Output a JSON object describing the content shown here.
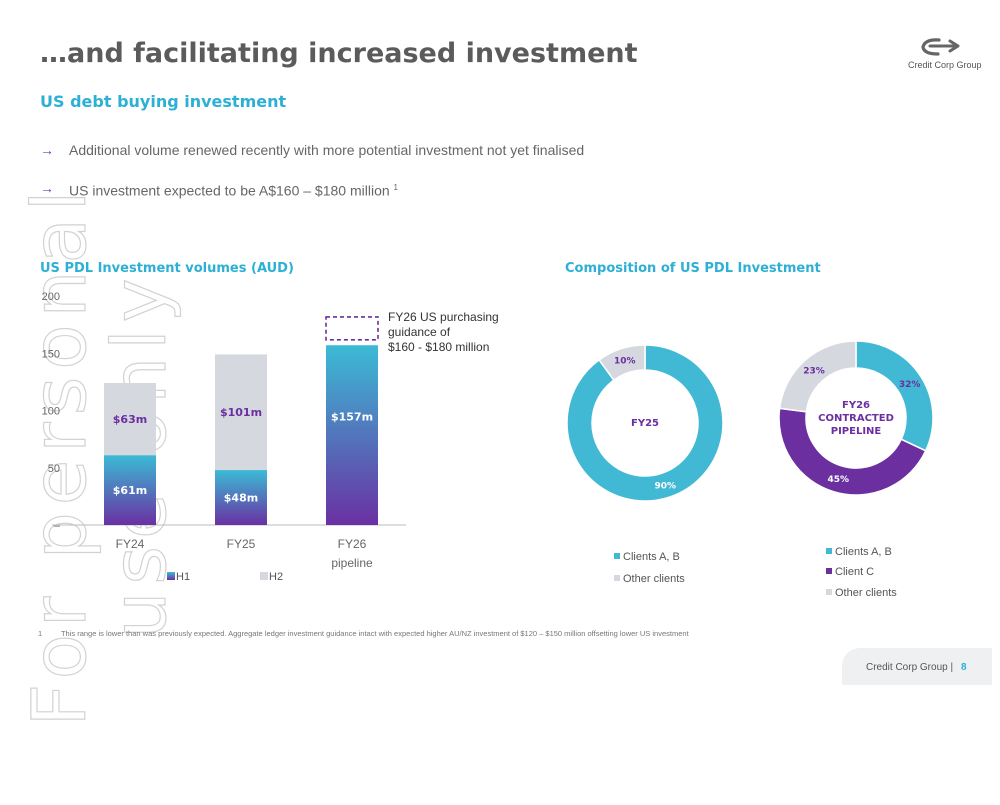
{
  "watermark": "For personal use only",
  "title": "…and facilitating increased investment",
  "subtitle": "US debt buying investment",
  "bullets": [
    {
      "arrow": "→",
      "text": "Additional volume renewed recently with more potential investment not yet finalised",
      "sup": ""
    },
    {
      "arrow": "→",
      "text": "US investment expected to be A$160 – $180 million ",
      "sup": "1"
    }
  ],
  "logo": {
    "text": "Credit Corp Group",
    "icon": "credit-corp-logo-icon"
  },
  "colors": {
    "title": "#5b5b5b",
    "accent": "#2cb0d5",
    "purple": "#6b2fa0",
    "teal": "#42b9d4",
    "grey": "#d5d8df",
    "h1_gradient_top": "#3bbbd5",
    "h1_gradient_bottom": "#6a30a3"
  },
  "chart_data": [
    {
      "type": "bar",
      "title": "US PDL Investment volumes (AUD)",
      "categories": [
        "FY24",
        "FY25",
        "FY26"
      ],
      "category_sublabels": [
        "",
        "",
        "pipeline"
      ],
      "ylim": [
        0,
        200
      ],
      "yticks": [
        "–",
        "50",
        "100",
        "150",
        "200"
      ],
      "stacked": true,
      "series": [
        {
          "name": "H1",
          "values": [
            61,
            48,
            157
          ],
          "labels": [
            "$61m",
            "$48m",
            "$157m"
          ]
        },
        {
          "name": "H2",
          "values": [
            63,
            101,
            null
          ],
          "labels": [
            "$63m",
            "$101m",
            ""
          ]
        }
      ],
      "annotation": {
        "text_lines": [
          "FY26 US purchasing",
          "guidance of",
          "$160 - $180 million"
        ],
        "range": [
          160,
          180
        ],
        "category": "FY26"
      },
      "legend": "bottom",
      "grid": false
    },
    {
      "type": "pie",
      "title": "Composition of US PDL Investment",
      "charts": [
        {
          "center_label": [
            "FY25"
          ],
          "slices": [
            {
              "name": "Clients A, B",
              "value": 90,
              "label": "90%"
            },
            {
              "name": "Other clients",
              "value": 10,
              "label": "10%"
            }
          ],
          "legend": [
            "Clients A, B",
            "Other clients"
          ]
        },
        {
          "center_label": [
            "FY26",
            "CONTRACTED",
            "PIPELINE"
          ],
          "slices": [
            {
              "name": "Clients A, B",
              "value": 32,
              "label": "32%"
            },
            {
              "name": "Client C",
              "value": 45,
              "label": "45%"
            },
            {
              "name": "Other clients",
              "value": 23,
              "label": "23%"
            }
          ],
          "legend": [
            "Clients A, B",
            "Client C",
            "Other clients"
          ]
        }
      ]
    }
  ],
  "footnote": {
    "number": "1",
    "text": "This range is lower than was previously expected. Aggregate ledger investment guidance intact with expected higher AU/NZ investment of $120 – $150 million offsetting lower US investment"
  },
  "footer": {
    "company": "Credit Corp Group  |",
    "page": "8"
  }
}
